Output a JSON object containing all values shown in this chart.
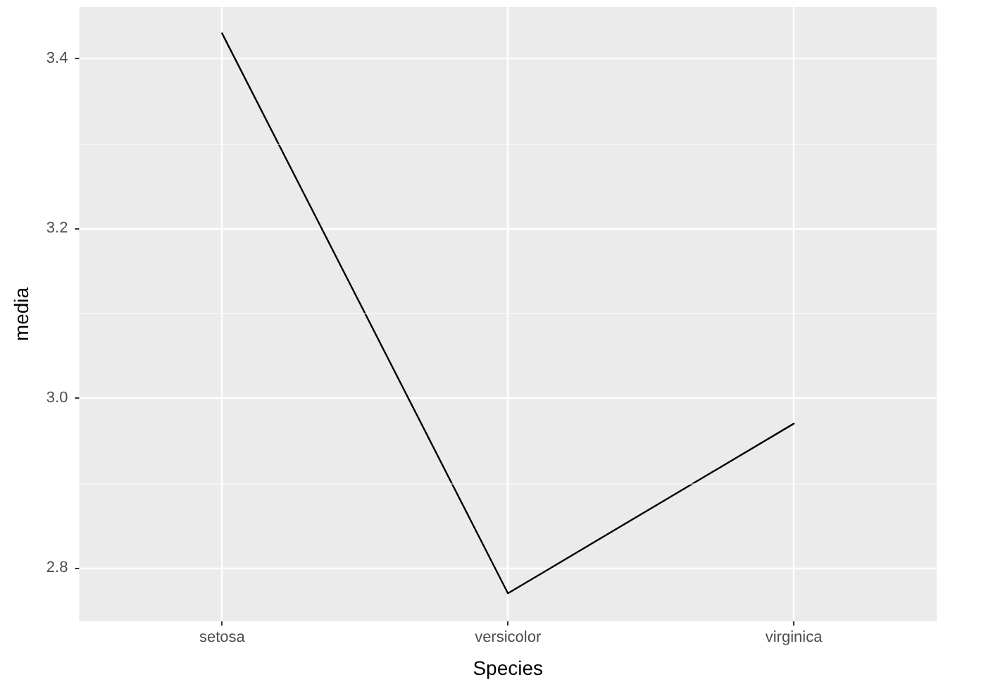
{
  "chart_data": {
    "type": "line",
    "xlabel": "Species",
    "ylabel": "media",
    "categories": [
      "setosa",
      "versicolor",
      "virginica"
    ],
    "series": [
      {
        "color": "#000000",
        "values": [
          3.43,
          2.77,
          2.97
        ]
      }
    ],
    "ylim": [
      2.737,
      3.461
    ],
    "yticks": [
      2.8,
      {
        "value": 3.0,
        "label": "3.0"
      },
      3.2,
      3.4
    ],
    "grid": true,
    "marker": "none",
    "line_style": "solid"
  }
}
